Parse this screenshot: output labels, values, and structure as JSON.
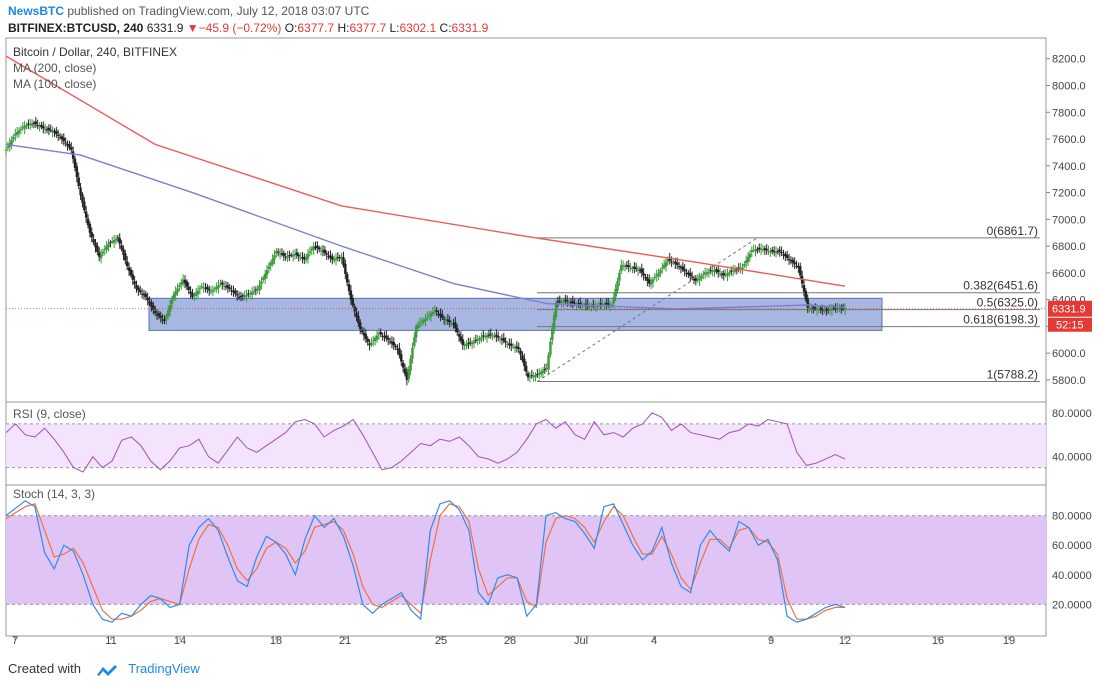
{
  "header": {
    "brand": "NewsBTC",
    "published_text": "published on TradingView.com, July 12, 2018 03:07 UTC",
    "symbol": "BITFINEX:BTCUSD, 240",
    "last": "6331.9",
    "change_arrow": "▼",
    "change": "−45.9 (−0.72%)",
    "o_label": "O:",
    "o_value": "6377.7",
    "h_label": "H:",
    "h_value": "6377.7",
    "l_label": "L:",
    "l_value": "6302.1",
    "c_label": "C:",
    "c_value": "6331.9"
  },
  "footer": {
    "created_with": "Created with",
    "logo_text": "TradingView"
  },
  "colors": {
    "up_candle": "#3a9a3a",
    "down_candle": "#222222",
    "ma200": "#f05a5a",
    "ma100": "#7e7ed0",
    "zone_fill": "#8a9fd8",
    "rsi_line": "#a04fc0",
    "rsi_band": "#f3e3fb",
    "stoch_band": "#e0c4f6",
    "stoch_k": "#2e8ce8",
    "stoch_d": "#f07040",
    "price_tag": "#e53935"
  },
  "chart_data": [
    {
      "type": "candlestick",
      "title": "Bitcoin / Dollar, 240, BITFINEX",
      "legend": [
        "MA (200, close)",
        "MA (100, close)"
      ],
      "ylim": [
        5650,
        8340
      ],
      "y_ticks": [
        "8200.0",
        "8000.0",
        "7800.0",
        "7600.0",
        "7400.0",
        "7200.0",
        "7000.0",
        "6800.0",
        "6600.0",
        "6400.0",
        "6200.0",
        "6000.0",
        "5800.0"
      ],
      "x_ticks": [
        "7",
        "11",
        "14",
        "18",
        "21",
        "25",
        "28",
        "Jul",
        "4",
        "9",
        "12",
        "16",
        "19"
      ],
      "last_price": "6331.9",
      "countdown": "52:15",
      "fib_levels": [
        {
          "label": "0(6861.7)",
          "value": 6861.7
        },
        {
          "label": "0.382(6451.6)",
          "value": 6451.6
        },
        {
          "label": "0.5(6325.0)",
          "value": 6325.0
        },
        {
          "label": "0.618(6198.3)",
          "value": 6198.3
        },
        {
          "label": "1(5788.2)",
          "value": 5788.2
        }
      ],
      "support_zone": [
        6170,
        6410
      ],
      "close_path": [
        [
          0,
          7520
        ],
        [
          5,
          7640
        ],
        [
          10,
          7700
        ],
        [
          15,
          7720
        ],
        [
          20,
          7680
        ],
        [
          25,
          7660
        ],
        [
          30,
          7600
        ],
        [
          35,
          7520
        ],
        [
          40,
          7180
        ],
        [
          45,
          6900
        ],
        [
          50,
          6720
        ],
        [
          55,
          6820
        ],
        [
          60,
          6860
        ],
        [
          65,
          6650
        ],
        [
          70,
          6480
        ],
        [
          75,
          6420
        ],
        [
          80,
          6300
        ],
        [
          85,
          6240
        ],
        [
          90,
          6440
        ],
        [
          95,
          6550
        ],
        [
          100,
          6420
        ],
        [
          105,
          6500
        ],
        [
          110,
          6460
        ],
        [
          115,
          6520
        ],
        [
          120,
          6480
        ],
        [
          125,
          6420
        ],
        [
          130,
          6440
        ],
        [
          135,
          6480
        ],
        [
          140,
          6620
        ],
        [
          145,
          6760
        ],
        [
          150,
          6720
        ],
        [
          155,
          6740
        ],
        [
          160,
          6700
        ],
        [
          165,
          6800
        ],
        [
          170,
          6760
        ],
        [
          175,
          6700
        ],
        [
          180,
          6720
        ],
        [
          185,
          6400
        ],
        [
          190,
          6180
        ],
        [
          195,
          6060
        ],
        [
          200,
          6150
        ],
        [
          205,
          6100
        ],
        [
          210,
          6030
        ],
        [
          215,
          5800
        ],
        [
          220,
          6200
        ],
        [
          225,
          6260
        ],
        [
          230,
          6320
        ],
        [
          235,
          6250
        ],
        [
          240,
          6220
        ],
        [
          245,
          6060
        ],
        [
          250,
          6080
        ],
        [
          255,
          6120
        ],
        [
          260,
          6140
        ],
        [
          265,
          6110
        ],
        [
          270,
          6060
        ],
        [
          275,
          6030
        ],
        [
          280,
          5820
        ],
        [
          285,
          5840
        ],
        [
          290,
          5890
        ],
        [
          295,
          6380
        ],
        [
          300,
          6390
        ],
        [
          305,
          6370
        ],
        [
          310,
          6360
        ],
        [
          315,
          6350
        ],
        [
          320,
          6370
        ],
        [
          325,
          6360
        ],
        [
          330,
          6660
        ],
        [
          335,
          6640
        ],
        [
          340,
          6620
        ],
        [
          345,
          6520
        ],
        [
          350,
          6600
        ],
        [
          355,
          6700
        ],
        [
          360,
          6660
        ],
        [
          365,
          6600
        ],
        [
          370,
          6540
        ],
        [
          375,
          6600
        ],
        [
          380,
          6620
        ],
        [
          385,
          6580
        ],
        [
          390,
          6620
        ],
        [
          395,
          6640
        ],
        [
          400,
          6770
        ],
        [
          405,
          6780
        ],
        [
          410,
          6760
        ],
        [
          415,
          6760
        ],
        [
          420,
          6700
        ],
        [
          425,
          6640
        ],
        [
          430,
          6340
        ],
        [
          435,
          6330
        ],
        [
          440,
          6320
        ],
        [
          445,
          6340
        ],
        [
          450,
          6332
        ]
      ],
      "ma200_path": [
        [
          0,
          8220
        ],
        [
          80,
          7560
        ],
        [
          180,
          7100
        ],
        [
          280,
          6870
        ],
        [
          370,
          6680
        ],
        [
          450,
          6500
        ]
      ],
      "ma100_path": [
        [
          0,
          7560
        ],
        [
          40,
          7480
        ],
        [
          100,
          7200
        ],
        [
          180,
          6800
        ],
        [
          240,
          6520
        ],
        [
          290,
          6370
        ],
        [
          360,
          6330
        ],
        [
          430,
          6360
        ],
        [
          450,
          6340
        ]
      ]
    },
    {
      "type": "line",
      "title": "RSI (9, close)",
      "ylim": [
        15,
        90
      ],
      "y_ticks": [
        "80.0000",
        "40.0000"
      ],
      "band": [
        30,
        70
      ],
      "series": [
        {
          "values": [
            62,
            70,
            60,
            58,
            66,
            56,
            44,
            30,
            26,
            40,
            30,
            36,
            55,
            58,
            50,
            36,
            28,
            36,
            48,
            50,
            56,
            40,
            34,
            46,
            58,
            48,
            44,
            50,
            56,
            62,
            72,
            74,
            70,
            58,
            64,
            68,
            74,
            60,
            44,
            28,
            30,
            36,
            44,
            52,
            50,
            56,
            54,
            58,
            50,
            40,
            38,
            34,
            38,
            44,
            56,
            70,
            74,
            66,
            72,
            60,
            56,
            72,
            60,
            62,
            58,
            66,
            70,
            80,
            76,
            64,
            70,
            62,
            60,
            58,
            56,
            62,
            64,
            70,
            68,
            74,
            72,
            70,
            44,
            32,
            34,
            38,
            42,
            38
          ]
        }
      ]
    },
    {
      "type": "line",
      "title": "Stoch (14, 3, 3)",
      "ylim": [
        0,
        100
      ],
      "y_ticks": [
        "80.0000",
        "60.0000",
        "40.0000",
        "20.0000"
      ],
      "band": [
        20,
        80
      ],
      "series": [
        {
          "values": [
            80,
            85,
            90,
            86,
            55,
            44,
            60,
            56,
            40,
            20,
            10,
            8,
            14,
            12,
            20,
            26,
            24,
            18,
            20,
            60,
            72,
            78,
            70,
            52,
            36,
            32,
            52,
            66,
            62,
            54,
            40,
            64,
            80,
            72,
            78,
            66,
            46,
            20,
            14,
            20,
            24,
            28,
            16,
            10,
            70,
            88,
            90,
            84,
            70,
            28,
            20,
            38,
            40,
            38,
            12,
            20,
            80,
            82,
            78,
            76,
            68,
            58,
            86,
            88,
            74,
            60,
            50,
            56,
            72,
            48,
            32,
            28,
            60,
            70,
            62,
            56,
            76,
            72,
            60,
            64,
            50,
            12,
            8,
            10,
            14,
            18,
            20,
            18
          ]
        },
        {
          "values": [
            78,
            82,
            86,
            88,
            70,
            52,
            54,
            58,
            48,
            32,
            16,
            10,
            10,
            12,
            16,
            22,
            24,
            22,
            20,
            44,
            64,
            74,
            72,
            60,
            44,
            36,
            44,
            58,
            62,
            58,
            48,
            56,
            72,
            74,
            76,
            70,
            54,
            32,
            20,
            18,
            22,
            26,
            20,
            14,
            50,
            80,
            88,
            86,
            76,
            44,
            26,
            32,
            38,
            38,
            22,
            18,
            62,
            78,
            80,
            78,
            72,
            62,
            76,
            86,
            80,
            66,
            54,
            54,
            66,
            54,
            38,
            30,
            48,
            64,
            64,
            58,
            70,
            72,
            64,
            62,
            54,
            24,
            10,
            10,
            12,
            16,
            18,
            18
          ]
        }
      ]
    }
  ]
}
